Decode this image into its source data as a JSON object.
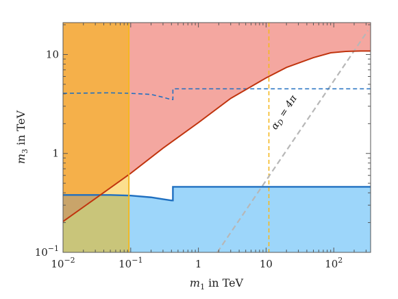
{
  "chart_data": {
    "type": "area",
    "xscale": "log",
    "yscale": "log",
    "xlim": [
      0.01,
      350
    ],
    "ylim": [
      0.1,
      21
    ],
    "xlabel": {
      "var": "m",
      "sub": "1",
      "rest": " in TeV"
    },
    "ylabel": {
      "var": "m",
      "sub": "3",
      "rest": " in TeV"
    },
    "x_ticks": [
      {
        "value": 0.01,
        "base": "10",
        "exp": "−2"
      },
      {
        "value": 0.1,
        "base": "10",
        "exp": "−1"
      },
      {
        "value": 1,
        "base": "1",
        "exp": ""
      },
      {
        "value": 10,
        "base": "10",
        "exp": ""
      },
      {
        "value": 100,
        "base": "10",
        "exp": "2"
      }
    ],
    "y_ticks": [
      {
        "value": 0.1,
        "base": "10",
        "exp": "−1"
      },
      {
        "value": 1,
        "base": "1",
        "exp": ""
      },
      {
        "value": 10,
        "base": "10",
        "exp": ""
      }
    ],
    "colors": {
      "orange_region": "#f5b04a",
      "pink_region": "#f4a7a0",
      "blue_region": "#9dd6fa",
      "yellow_region": "#fcdf8e",
      "olive_region": "#c9c57a",
      "brown_region": "#c9a46a",
      "red_line": "#c0340e",
      "blue_line": "#1f6fc0",
      "yellow_line": "#f4b820",
      "gray_line": "#b7b7b7"
    },
    "x_cut": 0.094,
    "yellow_dashed_x": 11,
    "red_curve": [
      [
        0.01,
        0.205
      ],
      [
        0.03,
        0.35
      ],
      [
        0.1,
        0.63
      ],
      [
        0.3,
        1.13
      ],
      [
        1,
        2.05
      ],
      [
        3,
        3.6
      ],
      [
        10,
        5.8
      ],
      [
        20,
        7.4
      ],
      [
        50,
        9.3
      ],
      [
        90,
        10.4
      ],
      [
        150,
        10.75
      ],
      [
        250,
        10.85
      ],
      [
        350,
        10.85
      ]
    ],
    "blue_solid": [
      [
        0.01,
        0.38
      ],
      [
        0.05,
        0.38
      ],
      [
        0.1,
        0.375
      ],
      [
        0.2,
        0.36
      ],
      [
        0.3,
        0.345
      ],
      [
        0.4,
        0.335
      ],
      [
        0.42,
        0.335
      ],
      [
        0.42,
        0.46
      ],
      [
        350,
        0.46
      ]
    ],
    "blue_dashed": [
      [
        0.01,
        4.05
      ],
      [
        0.05,
        4.1
      ],
      [
        0.1,
        4.05
      ],
      [
        0.2,
        3.95
      ],
      [
        0.3,
        3.7
      ],
      [
        0.4,
        3.5
      ],
      [
        0.42,
        3.5
      ],
      [
        0.42,
        4.5
      ],
      [
        350,
        4.5
      ]
    ],
    "gray_dashed": [
      [
        1.9,
        0.1
      ],
      [
        320,
        17.5
      ]
    ],
    "annotation": {
      "text": "α",
      "sub": "D",
      "rest": " = 4π",
      "x": 20,
      "y": 2.5,
      "angle_deg": -57
    }
  }
}
